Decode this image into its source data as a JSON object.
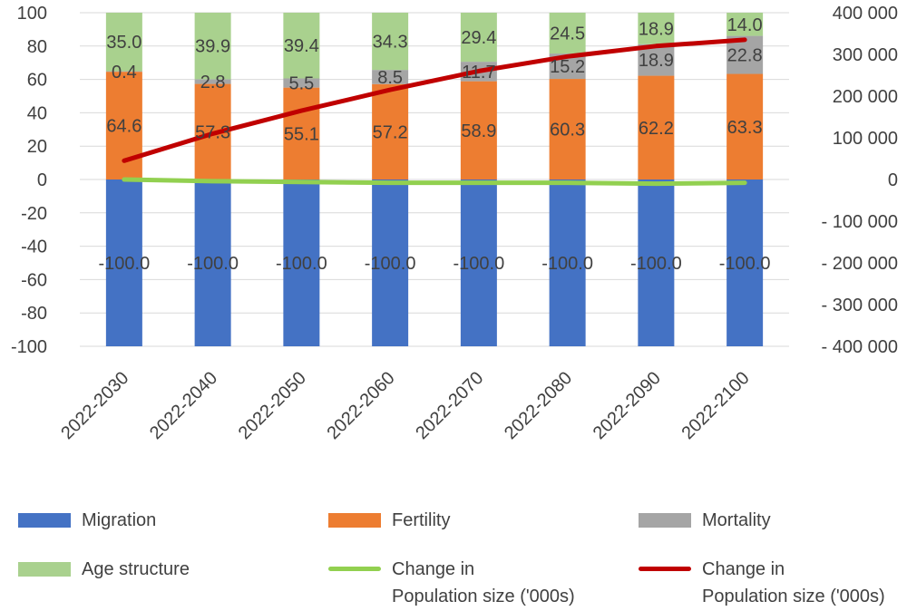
{
  "chart_data": {
    "type": "bar",
    "stacked": true,
    "categories": [
      "2022-2030",
      "2022-2040",
      "2022-2050",
      "2022-2060",
      "2022-2070",
      "2022-2080",
      "2022-2090",
      "2022-2100"
    ],
    "ylim": [
      -100,
      100
    ],
    "y_ticks": [
      100,
      80,
      60,
      40,
      20,
      0,
      -20,
      -40,
      -60,
      -80,
      -100
    ],
    "y2lim": [
      -400000,
      400000
    ],
    "y2_ticks": [
      "400 000",
      "300 000",
      "200 000",
      "100 000",
      "0",
      "- 100 000",
      "- 200 000",
      "- 300 000",
      "- 400 000"
    ],
    "y2_tick_values": [
      400000,
      300000,
      200000,
      100000,
      0,
      -100000,
      -200000,
      -300000,
      -400000
    ],
    "grid": true,
    "legend_position": "bottom",
    "series": [
      {
        "name": "Migration",
        "kind": "bar",
        "color": "#4472C4",
        "values": [
          -100.0,
          -100.0,
          -100.0,
          -100.0,
          -100.0,
          -100.0,
          -100.0,
          -100.0
        ],
        "labels": [
          "-100.0",
          "-100.0",
          "-100.0",
          "-100.0",
          "-100.0",
          "-100.0",
          "-100.0",
          "-100.0"
        ]
      },
      {
        "name": "Fertility",
        "kind": "bar",
        "color": "#ED7D31",
        "values": [
          64.6,
          57.3,
          55.1,
          57.2,
          58.9,
          60.3,
          62.2,
          63.3
        ],
        "labels": [
          "64.6",
          "57.3",
          "55.1",
          "57.2",
          "58.9",
          "60.3",
          "62.2",
          "63.3"
        ]
      },
      {
        "name": "Mortality",
        "kind": "bar",
        "color": "#A5A5A5",
        "values": [
          0.4,
          2.8,
          5.5,
          8.5,
          11.7,
          15.2,
          18.9,
          22.8
        ],
        "labels": [
          "0.4",
          "2.8",
          "5.5",
          "8.5",
          "11.7",
          "15.2",
          "18.9",
          "22.8"
        ]
      },
      {
        "name": "Age structure",
        "kind": "bar",
        "color": "#A9D18E",
        "values": [
          35.0,
          39.9,
          39.4,
          34.3,
          29.4,
          24.5,
          18.9,
          14.0
        ],
        "labels": [
          "35.0",
          "39.9",
          "39.4",
          "34.3",
          "29.4",
          "24.5",
          "18.9",
          "14.0"
        ]
      },
      {
        "name": "Change in\nPopulation size ('000s)",
        "kind": "line",
        "axis": "primary",
        "color": "#92D050",
        "values": [
          0,
          -1,
          -1.5,
          -2,
          -2,
          -2,
          -2.5,
          -2
        ]
      },
      {
        "name": "Change in\nPopulation size ('000s)",
        "kind": "line",
        "axis": "secondary",
        "color": "#C00000",
        "values": [
          45000,
          110000,
          165000,
          215000,
          260000,
          295000,
          320000,
          335000
        ]
      }
    ]
  },
  "legend": [
    {
      "label": "Migration",
      "color": "#4472C4",
      "style": "bar"
    },
    {
      "label": "Fertility",
      "color": "#ED7D31",
      "style": "bar"
    },
    {
      "label": "Mortality",
      "color": "#A5A5A5",
      "style": "bar"
    },
    {
      "label": "Age structure",
      "color": "#A9D18E",
      "style": "bar"
    },
    {
      "label": "Change in\nPopulation size ('000s)",
      "color": "#92D050",
      "style": "line"
    },
    {
      "label": "Change in\nPopulation size ('000s)",
      "color": "#C00000",
      "style": "line"
    }
  ]
}
